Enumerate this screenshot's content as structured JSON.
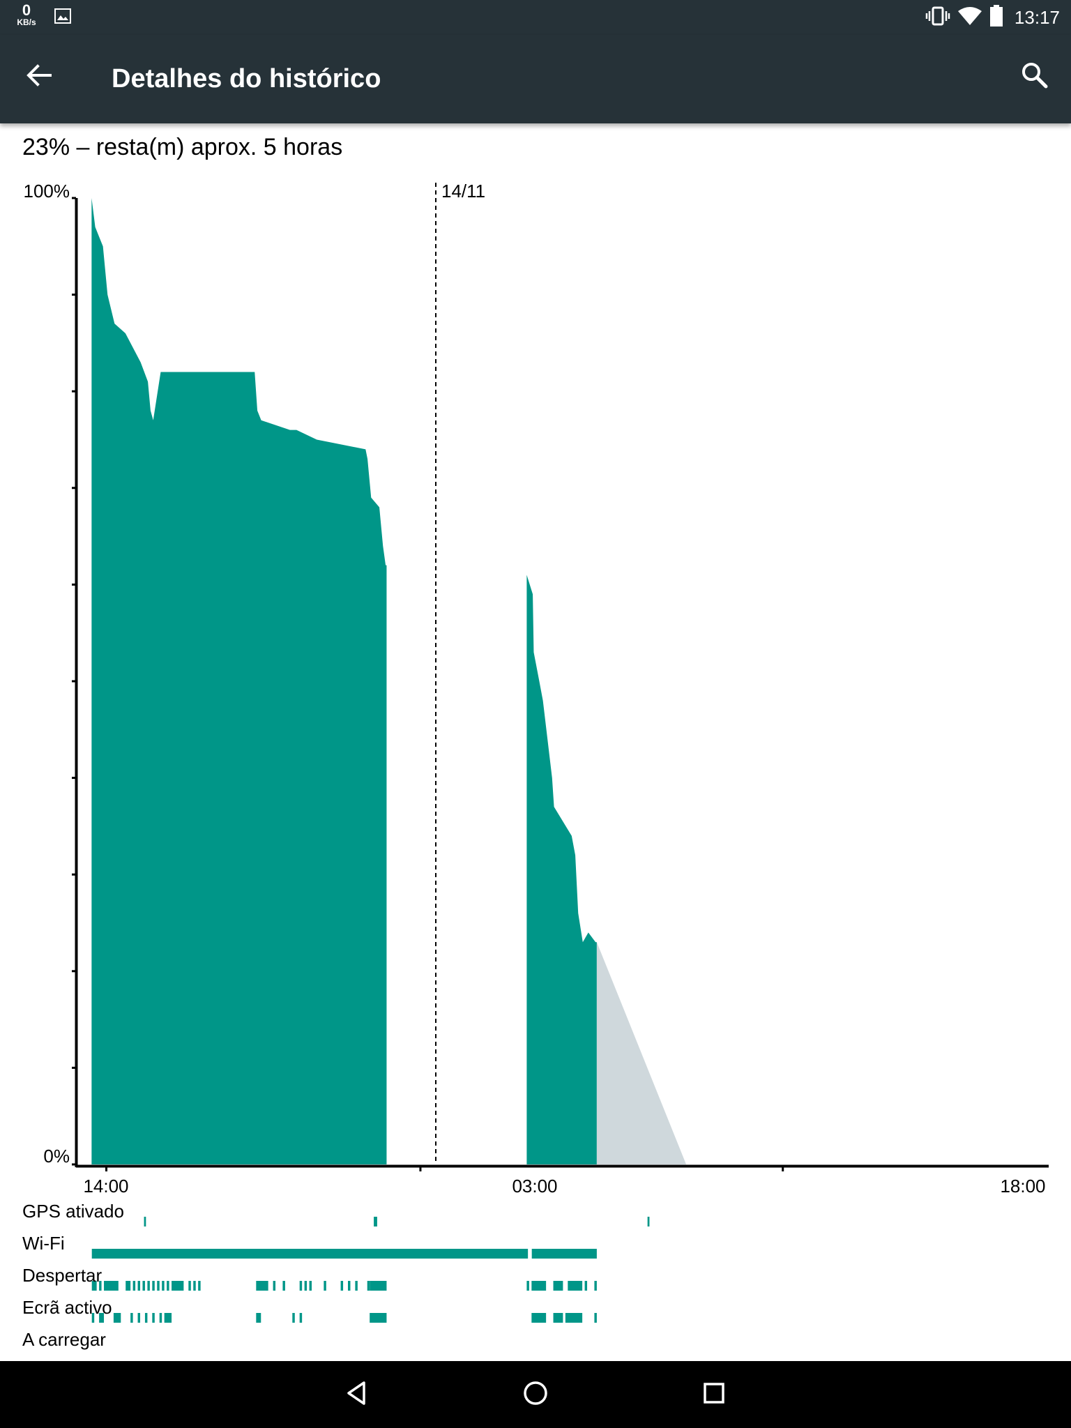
{
  "status_bar": {
    "net_speed_value": "0",
    "net_speed_unit": "KB/s",
    "time": "13:17",
    "icons": [
      "image-icon",
      "vibrate-icon",
      "wifi-icon",
      "battery-icon"
    ]
  },
  "app_bar": {
    "title": "Detalhes do histórico",
    "back_icon": "arrow-back-icon",
    "search_icon": "search-icon"
  },
  "summary": "23% – resta(m) aprox. 5 horas",
  "colors": {
    "accent": "#009688",
    "projection": "#cfd8dc",
    "bar_bg": "#263238",
    "axis": "#000000"
  },
  "chart_data": {
    "type": "area",
    "ylim": [
      0,
      100
    ],
    "y_tick_labels": [
      "100%",
      "0%"
    ],
    "y_tick_count": 10,
    "x_tick_labels": [
      "14:00",
      "03:00",
      "18:00"
    ],
    "day_marker_label": "14/11",
    "x_unit": "hours since 14:00 (13/11)",
    "segments": [
      {
        "name": "battery-level-segment-1",
        "x": [
          -0.61,
          -0.46,
          -0.3,
          -0.14,
          0.05,
          0.34,
          0.79,
          1.42,
          1.72,
          1.83,
          1.94,
          2.25,
          6.14,
          6.25,
          6.41,
          7.6,
          7.87,
          8.71,
          10.73,
          10.81,
          10.96,
          11.3,
          11.45,
          11.56,
          11.6
        ],
        "y": [
          100,
          97,
          96,
          95,
          90,
          87,
          86,
          83,
          81,
          78,
          77,
          82,
          82,
          78,
          77,
          76,
          76,
          75,
          74,
          73,
          69,
          68,
          64,
          62,
          62
        ]
      },
      {
        "name": "battery-level-segment-2",
        "x": [
          17.4,
          17.65,
          17.69,
          17.92,
          18.07,
          18.45,
          18.53,
          19.26,
          19.41,
          19.53,
          19.72,
          19.95,
          20.25,
          20.3
        ],
        "y": [
          61,
          59,
          53,
          50,
          48,
          40,
          37,
          34,
          32,
          26,
          23,
          24,
          23,
          23
        ]
      }
    ],
    "projection": {
      "name": "estimated-remaining",
      "x": [
        20.3,
        24.0
      ],
      "y": [
        23,
        0
      ]
    },
    "rows": [
      {
        "label": "GPS ativado",
        "intervals": [
          [
            1.56,
            1.64
          ],
          [
            11.07,
            11.21
          ],
          [
            22.4,
            22.48
          ]
        ]
      },
      {
        "label": "Wi-Fi",
        "intervals": [
          [
            -0.6,
            17.45
          ],
          [
            17.61,
            20.3
          ]
        ]
      },
      {
        "label": "Despertar",
        "intervals": [
          [
            -0.6,
            -0.4
          ],
          [
            -0.3,
            -0.2
          ],
          [
            -0.1,
            0.5
          ],
          [
            0.8,
            1.0
          ],
          [
            1.1,
            1.2
          ],
          [
            1.3,
            1.4
          ],
          [
            1.5,
            1.6
          ],
          [
            1.7,
            1.8
          ],
          [
            1.9,
            2.0
          ],
          [
            2.1,
            2.2
          ],
          [
            2.3,
            2.4
          ],
          [
            2.5,
            2.6
          ],
          [
            2.7,
            3.2
          ],
          [
            3.4,
            3.5
          ],
          [
            3.6,
            3.7
          ],
          [
            3.8,
            3.9
          ],
          [
            6.2,
            6.7
          ],
          [
            6.9,
            7.0
          ],
          [
            7.3,
            7.4
          ],
          [
            8.0,
            8.1
          ],
          [
            8.2,
            8.3
          ],
          [
            8.4,
            8.5
          ],
          [
            9.0,
            9.1
          ],
          [
            9.7,
            9.8
          ],
          [
            10.0,
            10.1
          ],
          [
            10.3,
            10.4
          ],
          [
            10.8,
            10.9
          ],
          [
            10.9,
            11.6
          ],
          [
            17.4,
            17.5
          ],
          [
            17.6,
            18.2
          ],
          [
            18.5,
            18.9
          ],
          [
            19.1,
            19.7
          ],
          [
            19.8,
            19.9
          ],
          [
            20.2,
            20.3
          ]
        ]
      },
      {
        "label": "Ecrã activo",
        "intervals": [
          [
            -0.6,
            -0.5
          ],
          [
            -0.3,
            -0.1
          ],
          [
            0.3,
            0.6
          ],
          [
            1.0,
            1.1
          ],
          [
            1.3,
            1.4
          ],
          [
            1.6,
            1.7
          ],
          [
            1.9,
            2.0
          ],
          [
            2.2,
            2.3
          ],
          [
            2.4,
            2.7
          ],
          [
            6.2,
            6.4
          ],
          [
            7.7,
            7.8
          ],
          [
            8.0,
            8.1
          ],
          [
            10.9,
            11.6
          ],
          [
            17.6,
            18.2
          ],
          [
            18.5,
            18.9
          ],
          [
            19.0,
            19.7
          ],
          [
            20.2,
            20.3
          ]
        ]
      },
      {
        "label": "A carregar",
        "intervals": []
      }
    ]
  },
  "nav_bar": {
    "icons": [
      "back-triangle-icon",
      "home-circle-icon",
      "recents-square-icon"
    ]
  }
}
